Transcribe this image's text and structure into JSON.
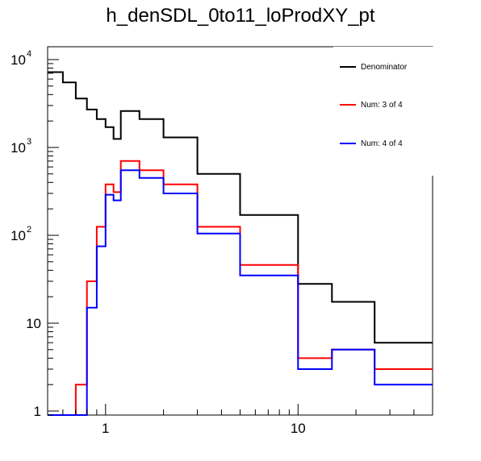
{
  "chart_data": {
    "type": "histogram",
    "title": "h_denSDL_0to11_loProdXY_pt",
    "xscale": "log",
    "yscale": "log",
    "xlim": [
      0.5,
      50
    ],
    "ylim": [
      0.9,
      14000
    ],
    "x_tick_labels": [
      "1",
      "10"
    ],
    "y_tick_labels": [
      {
        "base": "10",
        "exp": "4",
        "value": 10000
      },
      {
        "base": "10",
        "exp": "3",
        "value": 1000
      },
      {
        "base": "10",
        "exp": "2",
        "value": 100
      },
      {
        "base": "10",
        "exp": "",
        "value": 10
      },
      {
        "base": "1",
        "exp": "",
        "value": 1
      }
    ],
    "legend_position": "top-right",
    "bin_edges": [
      0.5,
      0.6,
      0.7,
      0.8,
      0.9,
      1.0,
      1.1,
      1.2,
      1.5,
      2.0,
      3.0,
      5.0,
      10.0,
      15.0,
      25.0,
      50.0
    ],
    "series": [
      {
        "name": "Denominator",
        "color": "#000000",
        "values": [
          7200,
          5500,
          3600,
          2700,
          2100,
          1700,
          1250,
          2600,
          2100,
          1300,
          500,
          170,
          28,
          17.5,
          6
        ]
      },
      {
        "name": "Num: 3 of 4",
        "color": "#ff0000",
        "values": [
          0,
          0,
          2,
          30,
          125,
          380,
          310,
          700,
          550,
          380,
          125,
          46,
          4,
          5,
          3
        ]
      },
      {
        "name": "Num: 4 of 4",
        "color": "#0000ff",
        "values": [
          0,
          0,
          0,
          15,
          75,
          290,
          250,
          550,
          450,
          300,
          105,
          35,
          3,
          5,
          2
        ]
      }
    ]
  }
}
